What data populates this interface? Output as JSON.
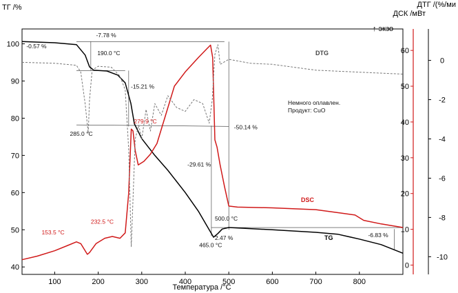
{
  "chart_data": {
    "type": "line",
    "xlabel": "Температура /°C",
    "ylabel_left": "ТГ /%",
    "ylabel_right_inner": "ДСК /мВт",
    "ylabel_right_outer": "ДТГ /(%/ми",
    "exo_label": "↑ экзо",
    "xlim": [
      25,
      900
    ],
    "ylim_tg": [
      38,
      104
    ],
    "ylim_dsc": [
      -2.6,
      66
    ],
    "ylim_dtg": [
      -10.9,
      1.6
    ],
    "x_ticks": [
      100,
      200,
      300,
      400,
      500,
      600,
      700,
      800
    ],
    "tg_ticks": [
      40,
      50,
      60,
      70,
      80,
      90,
      100
    ],
    "dsc_ticks": [
      0,
      10,
      20,
      30,
      40,
      50,
      60
    ],
    "dtg_ticks": [
      0,
      -2,
      -4,
      -6,
      -8,
      -10
    ],
    "series": [
      {
        "name": "TG",
        "color": "#000000",
        "points": [
          [
            25,
            100.6
          ],
          [
            100,
            100.3
          ],
          [
            150,
            99.8
          ],
          [
            170,
            97.0
          ],
          [
            180,
            93.8
          ],
          [
            190,
            92.9
          ],
          [
            220,
            92.7
          ],
          [
            245,
            91.6
          ],
          [
            262,
            89.5
          ],
          [
            275,
            84.0
          ],
          [
            283,
            78.5
          ],
          [
            300,
            74.5
          ],
          [
            330,
            70.0
          ],
          [
            360,
            66.0
          ],
          [
            400,
            60.0
          ],
          [
            430,
            55.0
          ],
          [
            450,
            51.0
          ],
          [
            465,
            48.0
          ],
          [
            475,
            49.0
          ],
          [
            485,
            50.2
          ],
          [
            500,
            50.6
          ],
          [
            600,
            50.0
          ],
          [
            700,
            49.3
          ],
          [
            750,
            48.8
          ],
          [
            800,
            47.5
          ],
          [
            850,
            46.0
          ],
          [
            900,
            43.7
          ]
        ]
      },
      {
        "name": "DSC",
        "color": "#d01818",
        "points": [
          [
            25,
            1.5
          ],
          [
            60,
            2.5
          ],
          [
            100,
            4.0
          ],
          [
            130,
            5.5
          ],
          [
            150,
            6.5
          ],
          [
            160,
            6.0
          ],
          [
            175,
            3.0
          ],
          [
            180,
            3.5
          ],
          [
            195,
            6.0
          ],
          [
            215,
            7.5
          ],
          [
            232.5,
            8.0
          ],
          [
            250,
            7.5
          ],
          [
            262,
            9.0
          ],
          [
            270,
            20.0
          ],
          [
            276,
            38.0
          ],
          [
            279.9,
            37.5
          ],
          [
            285,
            32.0
          ],
          [
            292,
            28.0
          ],
          [
            305,
            29.0
          ],
          [
            320,
            31.0
          ],
          [
            335,
            34.0
          ],
          [
            355,
            42.0
          ],
          [
            375,
            50.0
          ],
          [
            400,
            54.0
          ],
          [
            430,
            58.0
          ],
          [
            450,
            60.5
          ],
          [
            458,
            61.5
          ],
          [
            463,
            58.0
          ],
          [
            468,
            35.0
          ],
          [
            473,
            33.0
          ],
          [
            480,
            28.0
          ],
          [
            490,
            22.0
          ],
          [
            500,
            16.5
          ],
          [
            520,
            16.2
          ],
          [
            600,
            16.0
          ],
          [
            700,
            15.5
          ],
          [
            760,
            14.5
          ],
          [
            790,
            14.0
          ],
          [
            810,
            12.5
          ],
          [
            850,
            11.5
          ],
          [
            900,
            10.5
          ]
        ]
      },
      {
        "name": "DTG",
        "color": "#777777",
        "dashed": true,
        "points": [
          [
            25,
            -0.1
          ],
          [
            100,
            -0.15
          ],
          [
            150,
            -0.25
          ],
          [
            160,
            -0.6
          ],
          [
            170,
            -2.2
          ],
          [
            177,
            -3.7
          ],
          [
            180,
            -2.0
          ],
          [
            186,
            -0.5
          ],
          [
            200,
            -0.3
          ],
          [
            230,
            -0.35
          ],
          [
            250,
            -0.8
          ],
          [
            262,
            -1.5
          ],
          [
            270,
            -4.5
          ],
          [
            276,
            -9.5
          ],
          [
            280,
            -7.0
          ],
          [
            285,
            -4.0
          ],
          [
            293,
            -3.3
          ],
          [
            300,
            -4.0
          ],
          [
            310,
            -2.5
          ],
          [
            320,
            -3.6
          ],
          [
            330,
            -2.2
          ],
          [
            345,
            -2.8
          ],
          [
            360,
            -1.8
          ],
          [
            380,
            -2.4
          ],
          [
            400,
            -2.6
          ],
          [
            420,
            -2.0
          ],
          [
            440,
            -2.2
          ],
          [
            455,
            -3.2
          ],
          [
            462,
            -2.0
          ],
          [
            468,
            0.3
          ],
          [
            475,
            0.8
          ],
          [
            480,
            -0.2
          ],
          [
            500,
            0.05
          ],
          [
            550,
            -0.15
          ],
          [
            600,
            -0.2
          ],
          [
            700,
            -0.5
          ],
          [
            800,
            -0.6
          ],
          [
            900,
            -0.7
          ]
        ]
      }
    ],
    "annotations": [
      {
        "text": "-0.57 %",
        "color": "#111111"
      },
      {
        "text": "-7.78 %",
        "color": "#111111"
      },
      {
        "text": "190.0 °C",
        "color": "#111111"
      },
      {
        "text": "-15.21 %",
        "color": "#111111"
      },
      {
        "text": "285.0 °C",
        "color": "#111111"
      },
      {
        "text": "279.9 °C",
        "color": "#d01818"
      },
      {
        "text": "-50.14 %",
        "color": "#111111"
      },
      {
        "text": "-29.61 %",
        "color": "#111111"
      },
      {
        "text": "500.0 °C",
        "color": "#111111"
      },
      {
        "text": "465.0 °C",
        "color": "#111111"
      },
      {
        "text": "2.47 %",
        "color": "#111111"
      },
      {
        "text": "-6.83 %",
        "color": "#111111"
      },
      {
        "text": "153.5 °C",
        "color": "#d01818"
      },
      {
        "text": "232.5 °C",
        "color": "#d01818"
      }
    ],
    "note_lines": [
      "Немного оплавлен.",
      "Продукт: CuO"
    ],
    "series_labels": {
      "tg": "TG",
      "dsc": "DSC",
      "dtg": "DTG"
    }
  }
}
